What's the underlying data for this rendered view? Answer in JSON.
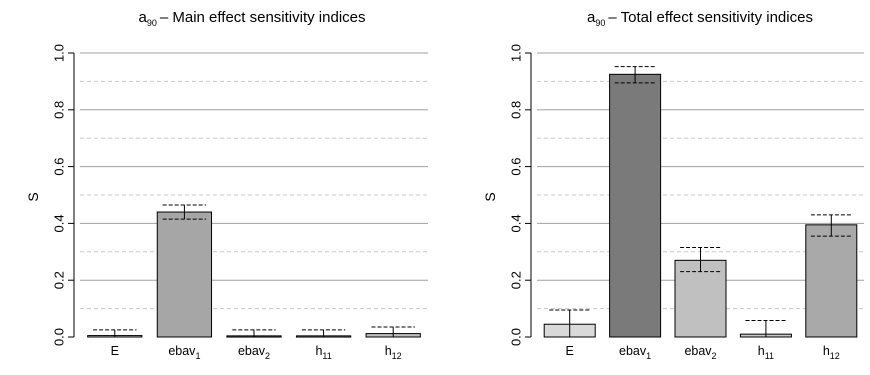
{
  "chart_data": [
    {
      "type": "bar",
      "title": "– Main effect sensitivity indices",
      "title_var": {
        "base": "a",
        "sub": "90"
      },
      "ylabel": "S",
      "xlabel": "",
      "ylim": [
        0,
        1.0
      ],
      "yticks": [
        "0.0",
        "0.2",
        "0.4",
        "0.6",
        "0.8",
        "1.0"
      ],
      "grid_solid": [
        0.2,
        0.4,
        0.6,
        0.8,
        1.0
      ],
      "grid_dashed": [
        0.1,
        0.3,
        0.5,
        0.7,
        0.9
      ],
      "categories": [
        {
          "base": "E",
          "sub": ""
        },
        {
          "base": "ebav",
          "sub": "1"
        },
        {
          "base": "ebav",
          "sub": "2"
        },
        {
          "base": "h",
          "sub": "11"
        },
        {
          "base": "h",
          "sub": "12"
        }
      ],
      "values": [
        0.005,
        0.44,
        0.004,
        0.004,
        0.012
      ],
      "error_low": [
        0.0,
        0.415,
        0.0,
        0.0,
        0.0
      ],
      "error_high": [
        0.025,
        0.465,
        0.025,
        0.025,
        0.035
      ],
      "colors": [
        "#d9d9d9",
        "#a6a6a6",
        "#8c8c8c",
        "#bfbfbf",
        "#bfbfbf"
      ]
    },
    {
      "type": "bar",
      "title": "– Total effect sensitivity indices",
      "title_var": {
        "base": "a",
        "sub": "90"
      },
      "ylabel": "S",
      "xlabel": "",
      "ylim": [
        0,
        1.0
      ],
      "yticks": [
        "0.0",
        "0.2",
        "0.4",
        "0.6",
        "0.8",
        "1.0"
      ],
      "grid_solid": [
        0.2,
        0.4,
        0.6,
        0.8,
        1.0
      ],
      "grid_dashed": [
        0.1,
        0.3,
        0.5,
        0.7,
        0.9
      ],
      "categories": [
        {
          "base": "E",
          "sub": ""
        },
        {
          "base": "ebav",
          "sub": "1"
        },
        {
          "base": "ebav",
          "sub": "2"
        },
        {
          "base": "h",
          "sub": "11"
        },
        {
          "base": "h",
          "sub": "12"
        }
      ],
      "values": [
        0.045,
        0.925,
        0.27,
        0.01,
        0.395
      ],
      "error_low": [
        0.0,
        0.895,
        0.23,
        0.0,
        0.355
      ],
      "error_high": [
        0.095,
        0.952,
        0.315,
        0.058,
        0.43
      ],
      "colors": [
        "#d9d9d9",
        "#7a7a7a",
        "#c0c0c0",
        "#c8c8c8",
        "#a9a9a9"
      ]
    }
  ]
}
